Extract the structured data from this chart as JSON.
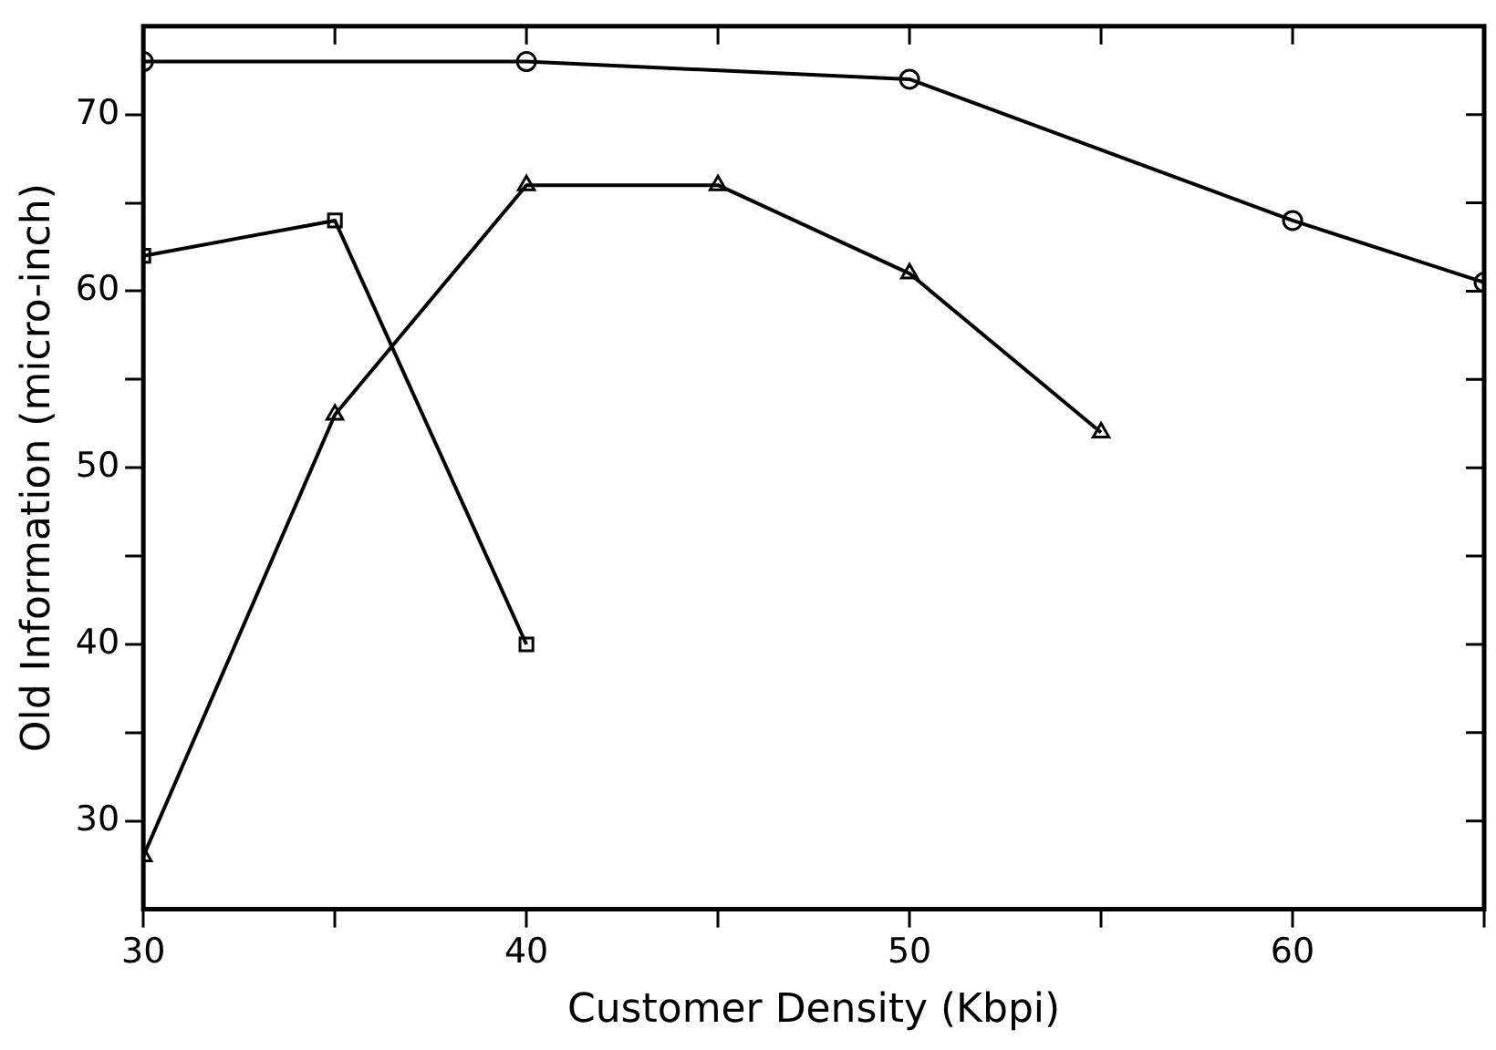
{
  "chart_data": {
    "type": "line",
    "xlabel": "Customer Density (Kbpi)",
    "ylabel": "Old Information (micro-inch)",
    "xlim": [
      30,
      65
    ],
    "ylim": [
      25,
      75
    ],
    "xticks": [
      30,
      {
        "value": 35,
        "label": null
      },
      40,
      {
        "value": 45,
        "label": null
      },
      50,
      {
        "value": 55,
        "label": null
      },
      60,
      {
        "value": 65,
        "label": null
      }
    ],
    "yticks": [
      30,
      {
        "value": 35,
        "label": null
      },
      40,
      {
        "value": 45,
        "label": null
      },
      50,
      {
        "value": 55,
        "label": null
      },
      60,
      {
        "value": 65,
        "label": null
      },
      70
    ],
    "grid": false,
    "legend": false,
    "line_style": "solid",
    "series": [
      {
        "color": "#000000",
        "marker": "circle",
        "x": [
          30,
          40,
          50,
          60,
          65
        ],
        "values": [
          73,
          73,
          72,
          64,
          60.5
        ]
      },
      {
        "color": "#000000",
        "marker": "square",
        "x": [
          30,
          35,
          40
        ],
        "values": [
          62,
          64,
          40
        ]
      },
      {
        "color": "#000000",
        "marker": "triangle",
        "x": [
          30,
          35,
          40,
          45,
          50,
          55
        ],
        "values": [
          28,
          53,
          66,
          66,
          61,
          52
        ]
      }
    ]
  }
}
